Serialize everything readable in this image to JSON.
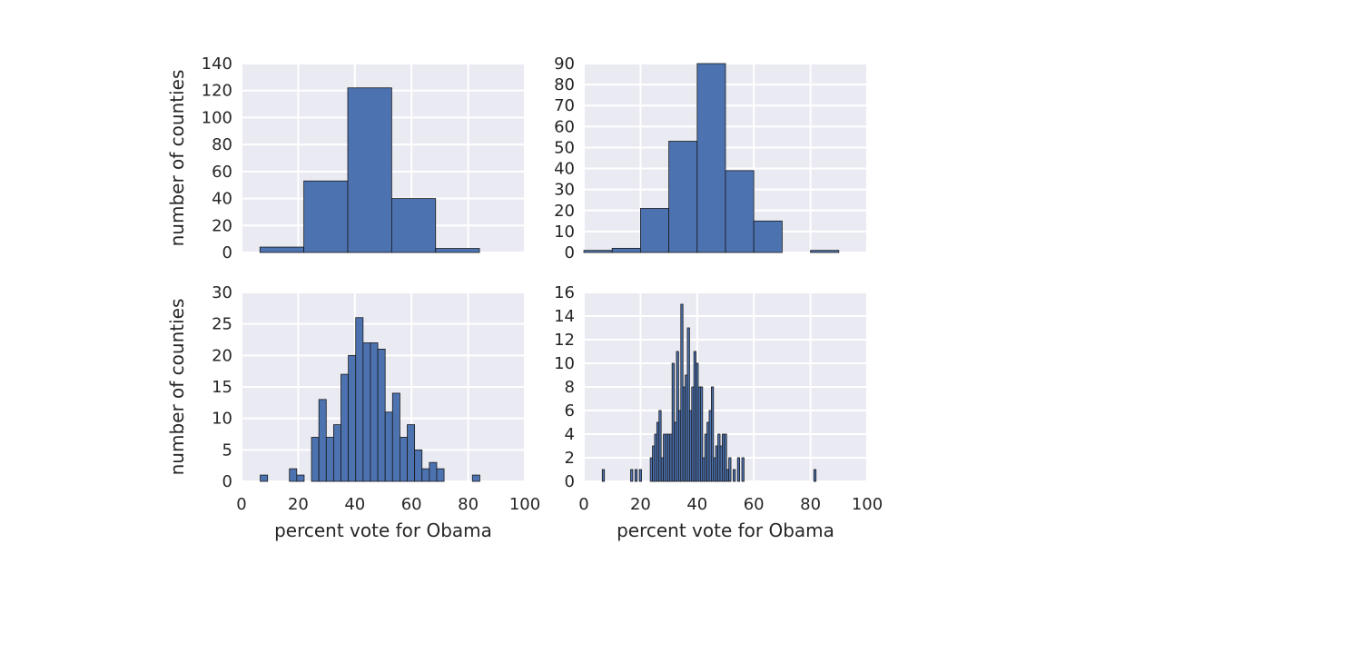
{
  "chart_data": [
    {
      "type": "bar",
      "panel": "top-left",
      "xlabel": "",
      "ylabel": "number of counties",
      "xlim": [
        0,
        100
      ],
      "ylim": [
        0,
        140
      ],
      "yticks": [
        0,
        20,
        40,
        60,
        80,
        100,
        120,
        140
      ],
      "xticks": [
        0,
        20,
        40,
        60,
        80,
        100
      ],
      "show_xtick_labels": false,
      "grid": true,
      "bins": [
        {
          "x0": 6.5,
          "x1": 22.0,
          "count": 4
        },
        {
          "x0": 22.0,
          "x1": 37.5,
          "count": 53
        },
        {
          "x0": 37.5,
          "x1": 53.0,
          "count": 122
        },
        {
          "x0": 53.0,
          "x1": 68.5,
          "count": 40
        },
        {
          "x0": 68.5,
          "x1": 84.0,
          "count": 3
        }
      ]
    },
    {
      "type": "bar",
      "panel": "top-right",
      "xlabel": "",
      "ylabel": "",
      "xlim": [
        0,
        100
      ],
      "ylim": [
        0,
        90
      ],
      "yticks": [
        0,
        10,
        20,
        30,
        40,
        50,
        60,
        70,
        80,
        90
      ],
      "xticks": [
        0,
        20,
        40,
        60,
        80,
        100
      ],
      "show_xtick_labels": false,
      "grid": true,
      "bins": [
        {
          "x0": 0,
          "x1": 10,
          "count": 1
        },
        {
          "x0": 10,
          "x1": 20,
          "count": 2
        },
        {
          "x0": 20,
          "x1": 30,
          "count": 21
        },
        {
          "x0": 30,
          "x1": 40,
          "count": 53
        },
        {
          "x0": 40,
          "x1": 50,
          "count": 90
        },
        {
          "x0": 50,
          "x1": 60,
          "count": 39
        },
        {
          "x0": 60,
          "x1": 70,
          "count": 15
        },
        {
          "x0": 70,
          "x1": 80,
          "count": 0
        },
        {
          "x0": 80,
          "x1": 90,
          "count": 1
        }
      ]
    },
    {
      "type": "bar",
      "panel": "bottom-left",
      "xlabel": "percent vote for Obama",
      "ylabel": "number of counties",
      "xlim": [
        0,
        100
      ],
      "ylim": [
        0,
        30
      ],
      "yticks": [
        0,
        5,
        10,
        15,
        20,
        25,
        30
      ],
      "xticks": [
        0,
        20,
        40,
        60,
        80,
        100
      ],
      "show_xtick_labels": true,
      "grid": true,
      "bins": [
        {
          "x0": 6.6,
          "x1": 9.2,
          "count": 1
        },
        {
          "x0": 16.9,
          "x1": 19.5,
          "count": 2
        },
        {
          "x0": 19.5,
          "x1": 22.1,
          "count": 1
        },
        {
          "x0": 24.7,
          "x1": 27.3,
          "count": 7
        },
        {
          "x0": 27.3,
          "x1": 29.9,
          "count": 13
        },
        {
          "x0": 29.9,
          "x1": 32.5,
          "count": 7
        },
        {
          "x0": 32.5,
          "x1": 35.1,
          "count": 9
        },
        {
          "x0": 35.1,
          "x1": 37.7,
          "count": 17
        },
        {
          "x0": 37.7,
          "x1": 40.3,
          "count": 20
        },
        {
          "x0": 40.3,
          "x1": 42.9,
          "count": 26
        },
        {
          "x0": 42.9,
          "x1": 45.5,
          "count": 22
        },
        {
          "x0": 45.5,
          "x1": 48.1,
          "count": 22
        },
        {
          "x0": 48.1,
          "x1": 50.7,
          "count": 21
        },
        {
          "x0": 50.7,
          "x1": 53.3,
          "count": 11
        },
        {
          "x0": 53.3,
          "x1": 55.9,
          "count": 14
        },
        {
          "x0": 55.9,
          "x1": 58.5,
          "count": 7
        },
        {
          "x0": 58.5,
          "x1": 61.1,
          "count": 9
        },
        {
          "x0": 61.1,
          "x1": 63.7,
          "count": 5
        },
        {
          "x0": 63.7,
          "x1": 66.3,
          "count": 2
        },
        {
          "x0": 66.3,
          "x1": 68.9,
          "count": 3
        },
        {
          "x0": 68.9,
          "x1": 71.5,
          "count": 2
        },
        {
          "x0": 81.5,
          "x1": 84.1,
          "count": 1
        }
      ]
    },
    {
      "type": "bar",
      "panel": "bottom-right",
      "xlabel": "percent vote for Obama",
      "ylabel": "",
      "xlim": [
        0,
        100
      ],
      "ylim": [
        0,
        16
      ],
      "yticks": [
        0,
        2,
        4,
        6,
        8,
        10,
        12,
        14,
        16
      ],
      "xticks": [
        0,
        20,
        40,
        60,
        80,
        100
      ],
      "show_xtick_labels": true,
      "grid": true,
      "bin_start": 6.5,
      "bin_width": 0.77,
      "counts": [
        1,
        0,
        0,
        0,
        0,
        0,
        0,
        0,
        0,
        0,
        0,
        0,
        0,
        1,
        0,
        1,
        0,
        1,
        0,
        0,
        0,
        0,
        2,
        3,
        4,
        5,
        6,
        2,
        4,
        4,
        4,
        4,
        10,
        5,
        11,
        6,
        15,
        8,
        9,
        13,
        6,
        8,
        11,
        10,
        8,
        8,
        2,
        4,
        5,
        6,
        8,
        2,
        3,
        4,
        3,
        4,
        4,
        1,
        2,
        0,
        1,
        0,
        2,
        0,
        2,
        0,
        0,
        0,
        0,
        0,
        0,
        0,
        0,
        0,
        0,
        0,
        0,
        0,
        0,
        0,
        0,
        0,
        0,
        0,
        0,
        0,
        0,
        0,
        0,
        0,
        0,
        0,
        0,
        0,
        0,
        0,
        0,
        1
      ]
    }
  ]
}
